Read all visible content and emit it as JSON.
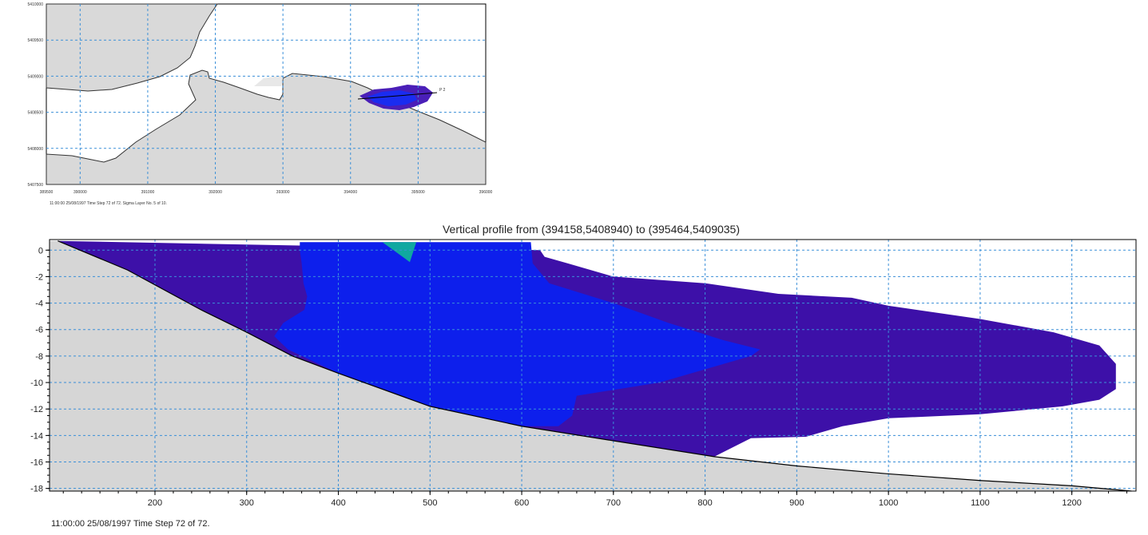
{
  "chart_data": [
    {
      "type": "map",
      "status": "11:00:00 25/08/1997  Time Step 72 of 72.  Sigma Layer No. 5 of 10.",
      "point_label": "P 2",
      "xlim": [
        389500,
        396000
      ],
      "ylim": [
        5407500,
        5410000
      ],
      "x_ticks": [
        389500,
        390000,
        391000,
        392000,
        393000,
        394000,
        395000,
        396000
      ],
      "x_tick_labels": [
        "389500",
        "390000",
        "391000",
        "392000",
        "393000",
        "394000",
        "395000",
        "396000"
      ],
      "y_ticks": [
        5407500,
        5408000,
        5408500,
        5409000,
        5409500,
        5410000
      ],
      "y_tick_labels": [
        "5407500",
        "5408000",
        "5408500",
        "5409000",
        "5409500",
        "5410000"
      ],
      "grid": true,
      "colors": {
        "land": "#d9d9d9",
        "coast": "#333333",
        "plume_outer": "#4a1fb8",
        "plume_core": "#1a2cf0"
      }
    },
    {
      "type": "area",
      "title": "Vertical profile from (394158,5408940) to (395464,5409035)",
      "status": "11:00:00 25/08/1997  Time Step 72 of 72.",
      "xlim": [
        85,
        1270
      ],
      "ylim": [
        -18.2,
        0.8
      ],
      "x_ticks": [
        200,
        300,
        400,
        500,
        600,
        700,
        800,
        900,
        1000,
        1100,
        1200
      ],
      "y_ticks": [
        0,
        -2,
        -4,
        -6,
        -8,
        -10,
        -12,
        -14,
        -16,
        -18
      ],
      "grid": true,
      "seabed": [
        [
          94,
          0.7
        ],
        [
          170,
          -1.5
        ],
        [
          250,
          -4.5
        ],
        [
          300,
          -6.2
        ],
        [
          350,
          -8
        ],
        [
          400,
          -9.3
        ],
        [
          500,
          -11.8
        ],
        [
          600,
          -13.3
        ],
        [
          700,
          -14.4
        ],
        [
          810,
          -15.6
        ],
        [
          900,
          -16.3
        ],
        [
          1000,
          -16.9
        ],
        [
          1100,
          -17.4
        ],
        [
          1200,
          -17.8
        ],
        [
          1265,
          -18.2
        ]
      ],
      "series": [
        {
          "color": "#3d10a8",
          "polygon": [
            [
              94,
              0.7
            ],
            [
              620,
              0
            ],
            [
              625,
              -0.5
            ],
            [
              650,
              -1
            ],
            [
              700,
              -2
            ],
            [
              800,
              -2.5
            ],
            [
              880,
              -3.3
            ],
            [
              960,
              -3.6
            ],
            [
              1000,
              -4.2
            ],
            [
              1100,
              -5.2
            ],
            [
              1180,
              -6.2
            ],
            [
              1230,
              -7.2
            ],
            [
              1248,
              -8.6
            ],
            [
              1248,
              -10.5
            ],
            [
              1230,
              -11.3
            ],
            [
              1190,
              -11.8
            ],
            [
              1100,
              -12.4
            ],
            [
              1000,
              -12.7
            ],
            [
              950,
              -13.3
            ],
            [
              910,
              -14.1
            ],
            [
              850,
              -14.2
            ],
            [
              810,
              -15.6
            ],
            [
              700,
              -14.4
            ],
            [
              600,
              -13.3
            ],
            [
              500,
              -11.8
            ],
            [
              400,
              -9.3
            ],
            [
              350,
              -8
            ],
            [
              300,
              -6.2
            ],
            [
              250,
              -4.5
            ],
            [
              170,
              -1.5
            ]
          ]
        },
        {
          "color": "#0d1fec",
          "polygon": [
            [
              358,
              0.6
            ],
            [
              610,
              0.6
            ],
            [
              612,
              -1
            ],
            [
              630,
              -2.5
            ],
            [
              700,
              -4
            ],
            [
              760,
              -5.5
            ],
            [
              820,
              -6.8
            ],
            [
              860,
              -7.5
            ],
            [
              850,
              -8
            ],
            [
              800,
              -9
            ],
            [
              750,
              -10
            ],
            [
              660,
              -11
            ],
            [
              655,
              -12.5
            ],
            [
              640,
              -13.3
            ],
            [
              600,
              -13.3
            ],
            [
              500,
              -11.8
            ],
            [
              400,
              -9.3
            ],
            [
              345,
              -7.5
            ],
            [
              330,
              -6.5
            ],
            [
              340,
              -5.5
            ],
            [
              363,
              -4.5
            ],
            [
              366,
              -3.5
            ],
            [
              362,
              -2.5
            ],
            [
              360,
              -1
            ],
            [
              358,
              0
            ]
          ]
        },
        {
          "color": "#10a8a0",
          "polygon": [
            [
              448,
              0.6
            ],
            [
              485,
              0.6
            ],
            [
              478,
              -0.9
            ]
          ]
        }
      ]
    }
  ]
}
